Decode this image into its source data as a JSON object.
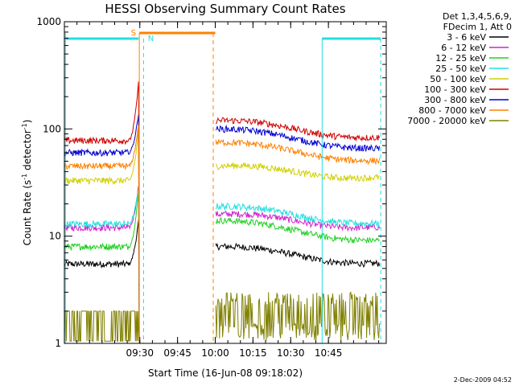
{
  "chart_data": {
    "type": "line",
    "title": "HESSI Observing Summary Count Rates",
    "xlabel": "Start Time (16-Jun-08 09:18:02)",
    "ylabel_main": "Count Rate (s",
    "ylabel_sup1": "-1",
    "ylabel_mid": " detector",
    "ylabel_sup2": "-1",
    "ylabel_end": ")",
    "yscale": "log",
    "ylim": [
      1,
      1000
    ],
    "xlim_minutes": [
      -18,
      110
    ],
    "x_ticks": [
      "09:30",
      "09:45",
      "10:00",
      "10:15",
      "10:30",
      "10:45"
    ],
    "y_ticks": [
      "1",
      "10",
      "100",
      "1000"
    ],
    "legend_header": [
      "Det 1,3,4,5,6,9,",
      "FDecim 1, Att 0"
    ],
    "flag_labels": {
      "saa": "S",
      "night": "N"
    },
    "timestamp": "2-Dec-2009 04:52",
    "series": [
      {
        "name": "3 - 6 keV",
        "color": "#000000",
        "pre": 5.5,
        "post_start": 8.0,
        "post_end": 5.5,
        "peak": 14
      },
      {
        "name": "6 - 12 keV",
        "color": "#d020d0",
        "pre": 12,
        "post_start": 16,
        "post_end": 12,
        "peak": 30
      },
      {
        "name": "12 - 25 keV",
        "color": "#20d020",
        "pre": 8,
        "post_start": 14,
        "post_end": 9,
        "peak": 26
      },
      {
        "name": "25 - 50 keV",
        "color": "#20e0e0",
        "pre": 13,
        "post_start": 19,
        "post_end": 13,
        "peak": 28
      },
      {
        "name": "50 - 100 keV",
        "color": "#d0d000",
        "pre": 33,
        "post_start": 45,
        "post_end": 35,
        "peak": 95
      },
      {
        "name": "100 - 300 keV",
        "color": "#d00000",
        "pre": 78,
        "post_start": 120,
        "post_end": 82,
        "peak": 270
      },
      {
        "name": "300 - 800 keV",
        "color": "#0000d0",
        "pre": 60,
        "post_start": 100,
        "post_end": 65,
        "peak": 140
      },
      {
        "name": "800 - 7000 keV",
        "color": "#ff8000",
        "pre": 45,
        "post_start": 75,
        "post_end": 50,
        "peak": 110
      },
      {
        "name": "7000 - 20000 keV",
        "color": "#808000",
        "pre": 1.6,
        "post_start": 2.5,
        "post_end": 1.8,
        "peak": 2.0
      }
    ]
  }
}
